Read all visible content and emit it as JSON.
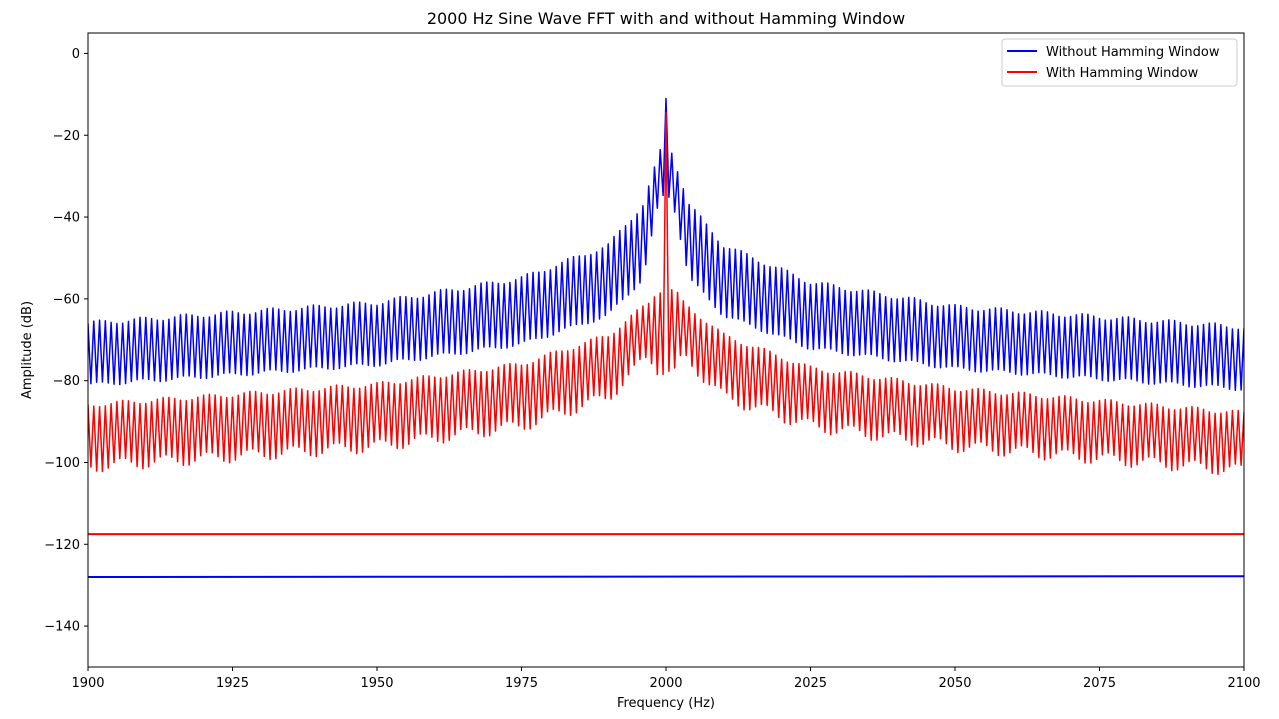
{
  "chart_data": {
    "type": "line",
    "title": "2000 Hz Sine Wave FFT with and without Hamming Window",
    "xlabel": "Frequency (Hz)",
    "ylabel": "Amplitude (dB)",
    "xlim": [
      1900,
      2100
    ],
    "ylim": [
      -150,
      5
    ],
    "xticks": [
      1900,
      1925,
      1950,
      1975,
      2000,
      2025,
      2050,
      2075,
      2100
    ],
    "yticks": [
      0,
      -20,
      -40,
      -60,
      -80,
      -100,
      -120,
      -140
    ],
    "grid": false,
    "legend_position": "upper-right",
    "series": [
      {
        "name": "Without Hamming Window",
        "color": "#0000ff",
        "peak": {
          "x": 2000,
          "y": -11
        },
        "sidelobe_envelope": [
          {
            "x": 1900,
            "upper": -66,
            "lower": -81
          },
          {
            "x": 1950,
            "upper": -61,
            "lower": -76
          },
          {
            "x": 1975,
            "upper": -55,
            "lower": -71
          },
          {
            "x": 1990,
            "upper": -47,
            "lower": -64
          },
          {
            "x": 1996,
            "upper": -37,
            "lower": -55
          },
          {
            "x": 1999,
            "upper": -24,
            "lower": -35
          },
          {
            "x": 2001,
            "upper": -24,
            "lower": -35
          },
          {
            "x": 2004,
            "upper": -37,
            "lower": -55
          },
          {
            "x": 2010,
            "upper": -47,
            "lower": -64
          },
          {
            "x": 2025,
            "upper": -56,
            "lower": -72
          },
          {
            "x": 2050,
            "upper": -62,
            "lower": -77
          },
          {
            "x": 2100,
            "upper": -67,
            "lower": -82
          }
        ],
        "floor_level": -128
      },
      {
        "name": "With Hamming Window",
        "color": "#ff0000",
        "peak": {
          "x": 2000,
          "y": -14.5
        },
        "sidelobe_envelope": [
          {
            "x": 1900,
            "upper": -86,
            "lower": -101
          },
          {
            "x": 1950,
            "upper": -81,
            "lower": -96
          },
          {
            "x": 1975,
            "upper": -76,
            "lower": -91
          },
          {
            "x": 1990,
            "upper": -69,
            "lower": -84
          },
          {
            "x": 1997,
            "upper": -61,
            "lower": -74
          },
          {
            "x": 1998.5,
            "upper": -58,
            "lower": -77
          },
          {
            "x": 2001.5,
            "upper": -58,
            "lower": -78
          },
          {
            "x": 2003,
            "upper": -61,
            "lower": -74
          },
          {
            "x": 2010,
            "upper": -69,
            "lower": -84
          },
          {
            "x": 2025,
            "upper": -77,
            "lower": -91
          },
          {
            "x": 2050,
            "upper": -82,
            "lower": -96
          },
          {
            "x": 2100,
            "upper": -88,
            "lower": -102
          }
        ],
        "floor_level": -117.5
      }
    ]
  }
}
